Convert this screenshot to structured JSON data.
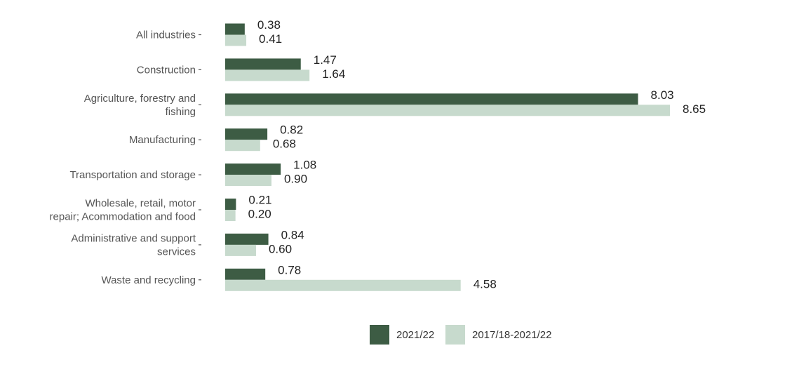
{
  "chart_data": {
    "type": "bar",
    "orientation": "horizontal",
    "categories": [
      [
        "All industries"
      ],
      [
        "Construction"
      ],
      [
        "Agriculture, forestry and",
        "fishing"
      ],
      [
        "Manufacturing"
      ],
      [
        "Transportation and storage"
      ],
      [
        "Wholesale, retail, motor",
        "repair; Acommodation and food"
      ],
      [
        "Administrative and support",
        "services"
      ],
      [
        "Waste and recycling"
      ]
    ],
    "series": [
      {
        "name": "2021/22",
        "color": "#3d5c44",
        "values": [
          0.38,
          1.47,
          8.03,
          0.82,
          1.08,
          0.21,
          0.84,
          0.78
        ],
        "labels": [
          "0.38",
          "1.47",
          "8.03",
          "0.82",
          "1.08",
          "0.21",
          "0.84",
          "0.78"
        ]
      },
      {
        "name": "2017/18-2021/22",
        "color": "#c7dacd",
        "values": [
          0.41,
          1.64,
          8.65,
          0.68,
          0.9,
          0.2,
          0.6,
          4.58
        ],
        "labels": [
          "0.41",
          "1.64",
          "8.65",
          "0.68",
          "0.90",
          "0.20",
          "0.60",
          "4.58"
        ]
      }
    ],
    "xlim": [
      0,
      8.65
    ],
    "grid": false,
    "legend_position": "bottom"
  }
}
